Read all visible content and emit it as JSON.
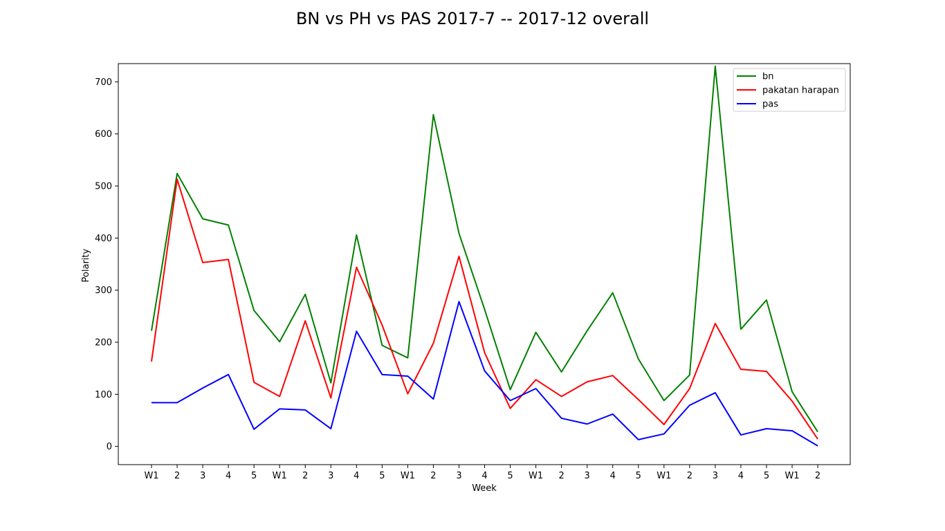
{
  "chart_data": {
    "type": "line",
    "title": "BN vs PH vs PAS 2017-7 -- 2017-12 overall",
    "xlabel": "Week",
    "ylabel": "Polarity",
    "categories": [
      "W1",
      "2",
      "3",
      "4",
      "5",
      "W1",
      "2",
      "3",
      "4",
      "5",
      "W1",
      "2",
      "3",
      "4",
      "5",
      "W1",
      "2",
      "3",
      "4",
      "5",
      "W1",
      "2",
      "3",
      "4",
      "5",
      "W1",
      "2"
    ],
    "ylim": [
      -35,
      735
    ],
    "yticks": [
      0,
      100,
      200,
      300,
      400,
      500,
      600,
      700
    ],
    "grid": false,
    "legend_position": "top-right",
    "series": [
      {
        "name": "bn",
        "color": "#008000",
        "values": [
          222,
          524,
          437,
          425,
          261,
          201,
          292,
          122,
          406,
          194,
          170,
          637,
          409,
          263,
          109,
          219,
          143,
          222,
          295,
          168,
          88,
          137,
          730,
          225,
          281,
          105,
          28
        ]
      },
      {
        "name": "pakatan harapan",
        "color": "#ff0000",
        "values": [
          163,
          513,
          353,
          359,
          123,
          96,
          241,
          93,
          344,
          233,
          101,
          198,
          365,
          180,
          73,
          128,
          96,
          124,
          136,
          90,
          42,
          111,
          236,
          148,
          144,
          87,
          14
        ]
      },
      {
        "name": "pas",
        "color": "#0000ff",
        "values": [
          84,
          84,
          112,
          138,
          33,
          72,
          70,
          34,
          221,
          138,
          135,
          91,
          278,
          145,
          88,
          111,
          54,
          43,
          62,
          13,
          24,
          79,
          103,
          22,
          34,
          30,
          1
        ]
      }
    ]
  }
}
